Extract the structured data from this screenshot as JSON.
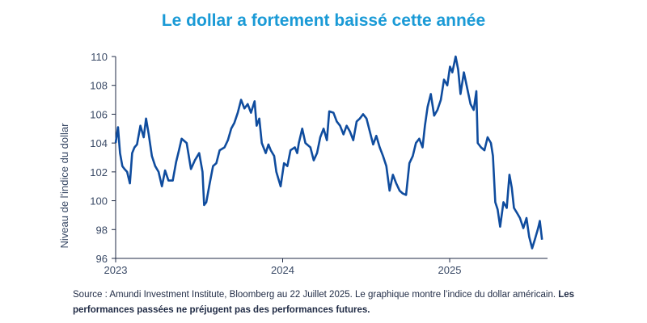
{
  "chart_data": {
    "type": "line",
    "title": "Le dollar a fortement baissé cette année",
    "xlabel": "",
    "ylabel": "Niveau  de  l'indice du dollar",
    "ylim": [
      96,
      110
    ],
    "xlim": [
      2023,
      2025.56
    ],
    "yticks": [
      "96",
      "98",
      "100",
      "102",
      "104",
      "106",
      "108",
      "110"
    ],
    "xticks": [
      "2023",
      "2024",
      "2025"
    ],
    "grid": false,
    "color": "#0f4c9e",
    "series": [
      {
        "name": "Indice du dollar américain",
        "x": [
          2023.0,
          2023.014,
          2023.026,
          2023.04,
          2023.053,
          2023.069,
          2023.085,
          2023.099,
          2023.113,
          2023.128,
          2023.148,
          2023.168,
          2023.182,
          2023.198,
          2023.217,
          2023.237,
          2023.257,
          2023.277,
          2023.296,
          2023.316,
          2023.342,
          2023.362,
          2023.379,
          2023.395,
          2023.425,
          2023.451,
          2023.474,
          2023.5,
          2023.52,
          2023.53,
          2023.543,
          2023.563,
          2023.583,
          2023.603,
          2023.623,
          2023.652,
          2023.672,
          2023.692,
          2023.711,
          2023.731,
          2023.751,
          2023.771,
          2023.791,
          2023.81,
          2023.832,
          2023.844,
          2023.86,
          2023.875,
          2023.899,
          2023.915,
          2023.929,
          2023.949,
          2023.962,
          2023.988,
          2024.008,
          2024.028,
          2024.047,
          2024.073,
          2024.087,
          2024.097,
          2024.117,
          2024.136,
          2024.166,
          2024.186,
          2024.206,
          2024.225,
          2024.245,
          2024.265,
          2024.279,
          2024.304,
          2024.324,
          2024.344,
          2024.364,
          2024.383,
          2024.403,
          2024.423,
          2024.443,
          2024.462,
          2024.482,
          2024.502,
          2024.522,
          2024.542,
          2024.561,
          2024.581,
          2024.601,
          2024.621,
          2024.64,
          2024.66,
          2024.68,
          2024.7,
          2024.719,
          2024.739,
          2024.759,
          2024.779,
          2024.798,
          2024.818,
          2024.838,
          2024.852,
          2024.868,
          2024.887,
          2024.907,
          2024.927,
          2024.947,
          2024.966,
          2024.986,
          2025.002,
          2025.016,
          2025.036,
          2025.051,
          2025.065,
          2025.085,
          2025.105,
          2025.125,
          2025.144,
          2025.16,
          2025.168,
          2025.188,
          2025.208,
          2025.227,
          2025.247,
          2025.259,
          2025.273,
          2025.287,
          2025.302,
          2025.322,
          2025.342,
          2025.358,
          2025.372,
          2025.385,
          2025.401,
          2025.421,
          2025.441,
          2025.46,
          2025.476,
          2025.494,
          2025.51,
          2025.53,
          2025.54,
          2025.553
        ],
        "values": [
          104.0,
          105.1,
          103.3,
          102.4,
          102.2,
          102.0,
          101.2,
          103.3,
          103.7,
          103.9,
          105.2,
          104.4,
          105.7,
          104.6,
          103.1,
          102.4,
          102.0,
          101.0,
          102.1,
          101.4,
          101.4,
          102.7,
          103.5,
          104.3,
          104.0,
          102.2,
          102.8,
          103.3,
          102.0,
          99.7,
          99.9,
          101.2,
          102.4,
          102.6,
          103.5,
          103.7,
          104.2,
          105.0,
          105.4,
          106.1,
          107.0,
          106.4,
          106.7,
          106.1,
          106.9,
          105.2,
          105.7,
          104.0,
          103.3,
          103.9,
          103.5,
          103.1,
          102.0,
          101.0,
          102.6,
          102.4,
          103.5,
          103.7,
          103.3,
          104.0,
          105.0,
          104.0,
          103.7,
          102.8,
          103.3,
          104.4,
          105.0,
          104.2,
          106.2,
          106.1,
          105.5,
          105.2,
          104.6,
          105.2,
          104.8,
          104.2,
          105.5,
          105.7,
          106.0,
          105.7,
          104.8,
          103.9,
          104.5,
          103.7,
          103.1,
          102.4,
          100.7,
          101.8,
          101.2,
          100.7,
          100.5,
          100.4,
          102.6,
          103.1,
          104.0,
          104.3,
          103.7,
          105.2,
          106.5,
          107.4,
          105.9,
          106.3,
          107.0,
          108.4,
          108.0,
          109.3,
          108.9,
          110.0,
          109.1,
          107.4,
          108.9,
          107.8,
          106.7,
          106.3,
          107.6,
          104.0,
          103.7,
          103.5,
          104.4,
          104.0,
          103.1,
          99.9,
          99.4,
          98.2,
          99.9,
          99.5,
          101.8,
          100.9,
          99.5,
          99.2,
          98.8,
          98.1,
          98.8,
          97.5,
          96.7,
          97.3,
          98.1,
          98.6,
          97.3
        ]
      }
    ]
  },
  "footer": {
    "source": "Source : Amundi Investment  Institute, Bloomberg au 22 Juillet 2025. Le graphique montre  l’indice du dollar américain. ",
    "disclaimer": "Les performances passées ne préjugent pas des performances futures."
  }
}
